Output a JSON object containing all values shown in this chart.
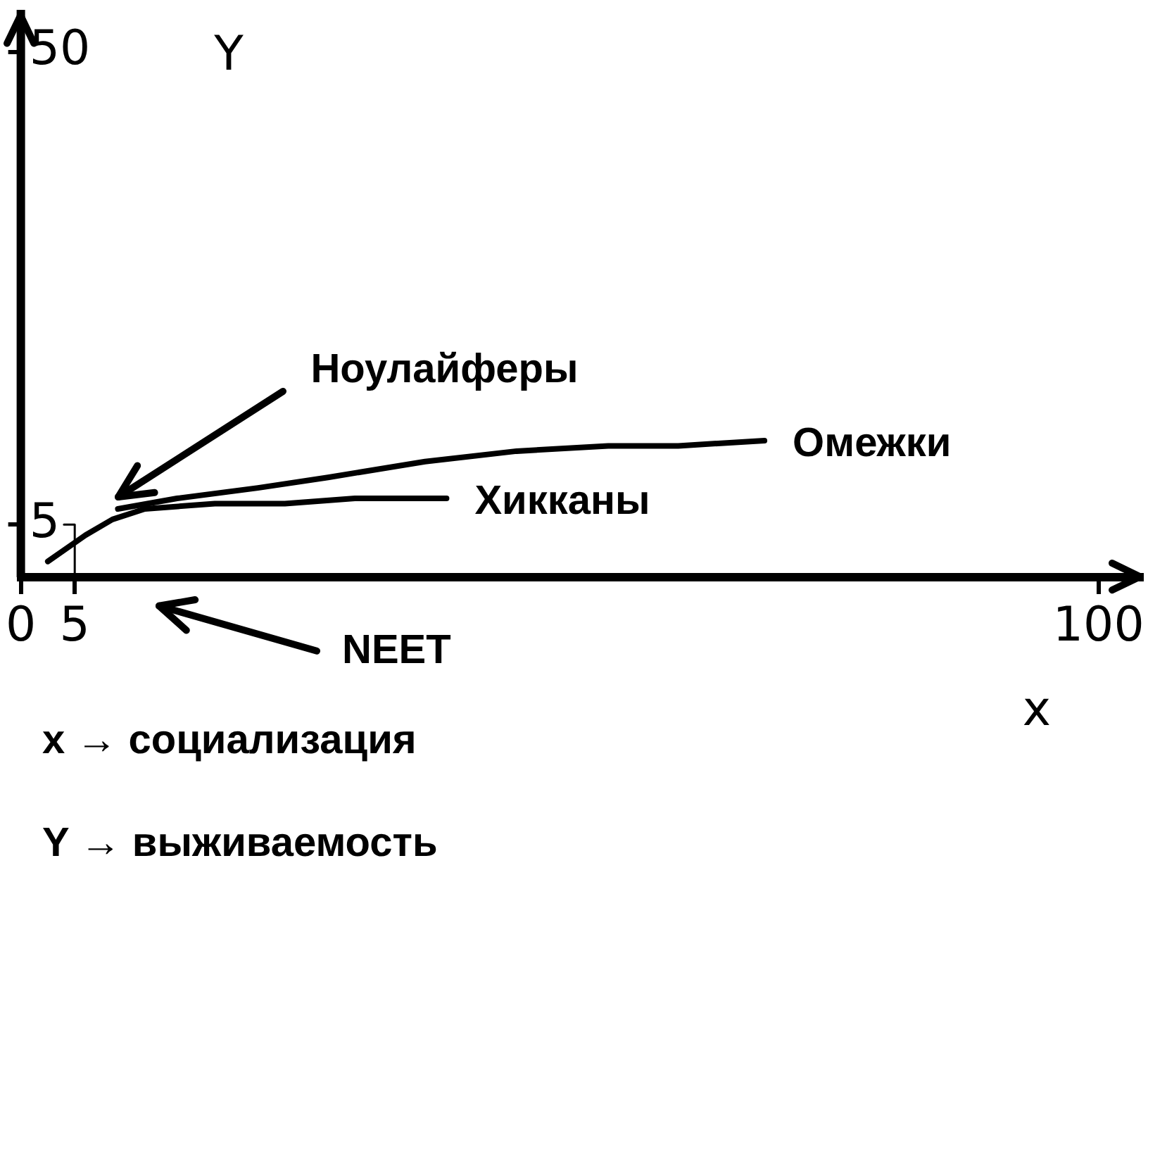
{
  "chart_data": {
    "type": "line",
    "xlabel": "x",
    "ylabel": "Y",
    "xlim": [
      0,
      104
    ],
    "ylim": [
      0,
      54
    ],
    "xticks": [
      0,
      5,
      100
    ],
    "yticks": [
      5,
      50
    ],
    "series": [
      {
        "name": "Омежки",
        "color": "#000000",
        "x": [
          9,
          14.5,
          22,
          28.5,
          37.5,
          46,
          54.5,
          61,
          69
        ],
        "values": [
          6.5,
          7.5,
          8.5,
          9.5,
          11,
          12,
          12.5,
          12.5,
          13
        ]
      },
      {
        "name": "Хикканы",
        "color": "#000000",
        "x": [
          2.5,
          6,
          8.5,
          11.5,
          18,
          24.5,
          31,
          39.5
        ],
        "values": [
          1.5,
          4,
          5.5,
          6.5,
          7,
          7,
          7.5,
          7.5
        ]
      },
      {
        "color": "#000000",
        "x": [
          4,
          5,
          5
        ],
        "values": [
          5,
          5,
          0
        ]
      }
    ],
    "annotations": [
      {
        "text": "Ноулайферы",
        "x": 9,
        "y": 6.5
      },
      "NEET",
      "x → социализация",
      "Y → выживаемость"
    ]
  }
}
